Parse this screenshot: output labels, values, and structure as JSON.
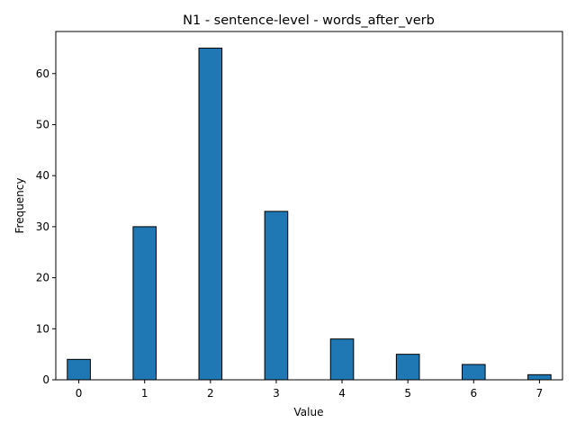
{
  "chart_data": {
    "type": "bar",
    "title": "N1 - sentence-level - words_after_verb",
    "xlabel": "Value",
    "ylabel": "Frequency",
    "xlim": [
      -0.35,
      7.35
    ],
    "ylim": [
      0,
      68.25
    ],
    "bin_width": 0.35,
    "x": [
      0,
      1,
      2,
      3,
      4,
      5,
      6,
      7
    ],
    "values": [
      4,
      30,
      65,
      33,
      8,
      5,
      3,
      1
    ],
    "xticks": [
      0,
      1,
      2,
      3,
      4,
      5,
      6,
      7
    ],
    "yticks": [
      0,
      10,
      20,
      30,
      40,
      50,
      60
    ],
    "grid": false,
    "bar_color": "#1f77b4",
    "edge_color": "#000000"
  }
}
